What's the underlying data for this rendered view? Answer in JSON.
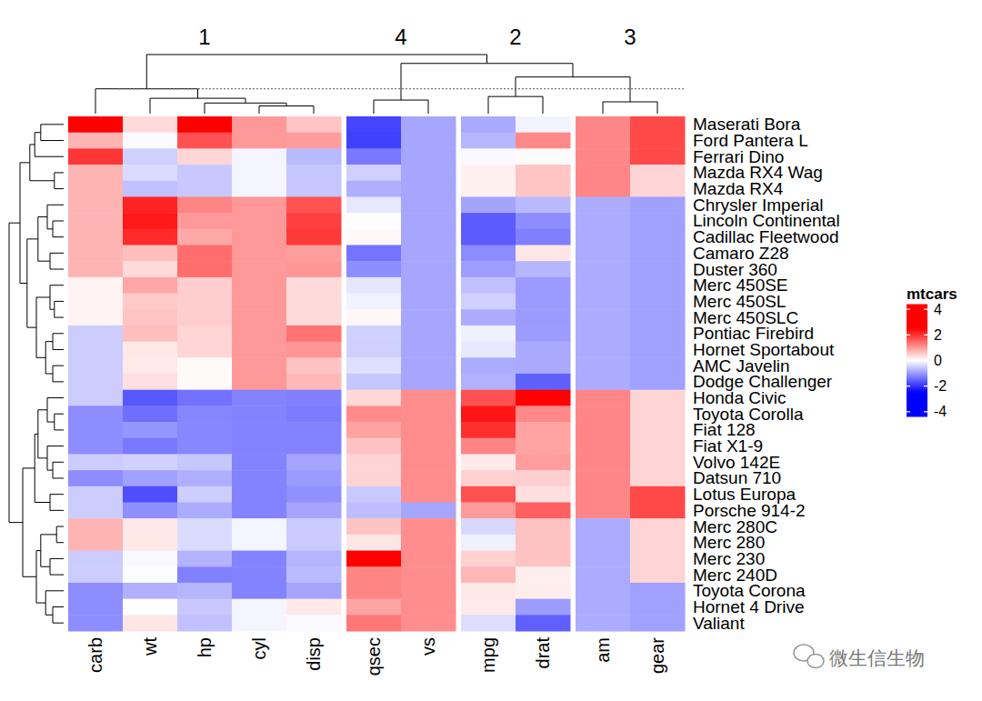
{
  "chart_data": {
    "type": "heatmap",
    "legend_title": "mtcars",
    "rows": [
      "Maserati Bora",
      "Ford Pantera L",
      "Ferrari Dino",
      "Mazda RX4 Wag",
      "Mazda RX4",
      "Chrysler Imperial",
      "Lincoln Continental",
      "Cadillac Fleetwood",
      "Camaro Z28",
      "Duster 360",
      "Merc 450SE",
      "Merc 450SL",
      "Merc 450SLC",
      "Pontiac Firebird",
      "Hornet Sportabout",
      "AMC Javelin",
      "Dodge Challenger",
      "Honda Civic",
      "Toyota Corolla",
      "Fiat 128",
      "Fiat X1-9",
      "Volvo 142E",
      "Datsun 710",
      "Lotus Europa",
      "Porsche 914-2",
      "Merc 280C",
      "Merc 280",
      "Merc 230",
      "Merc 240D",
      "Toyota Corona",
      "Hornet 4 Drive",
      "Valiant"
    ],
    "columns": [
      "carb",
      "wt",
      "hp",
      "cyl",
      "disp",
      "qsec",
      "vs",
      "mpg",
      "drat",
      "am",
      "gear"
    ],
    "column_groups": [
      {
        "label": "1",
        "columns": [
          0,
          1,
          2,
          3,
          4
        ]
      },
      {
        "label": "4",
        "columns": [
          5,
          6
        ]
      },
      {
        "label": "2",
        "columns": [
          7,
          8
        ]
      },
      {
        "label": "3",
        "columns": [
          9,
          10
        ]
      }
    ],
    "cells": [
      [
        3.21,
        0.36,
        2.75,
        1.01,
        0.57,
        -1.82,
        -0.87,
        -0.84,
        -0.11,
        1.19,
        1.78
      ],
      [
        0.74,
        -0.05,
        1.71,
        1.01,
        0.97,
        -1.87,
        -0.87,
        -0.71,
        1.17,
        1.19,
        1.78
      ],
      [
        1.97,
        -0.46,
        0.41,
        -0.1,
        -0.69,
        -1.31,
        -0.87,
        -0.06,
        0.04,
        1.19,
        1.78
      ],
      [
        0.74,
        -0.35,
        -0.54,
        -0.1,
        -0.57,
        -0.46,
        -0.87,
        0.15,
        0.57,
        1.19,
        0.42
      ],
      [
        0.74,
        -0.61,
        -0.54,
        -0.1,
        -0.57,
        -0.78,
        -0.87,
        0.15,
        0.57,
        1.19,
        0.42
      ],
      [
        0.74,
        2.17,
        1.21,
        1.01,
        1.7,
        -0.24,
        -0.87,
        -0.89,
        -0.69,
        -0.81,
        -0.93
      ],
      [
        0.74,
        2.26,
        1.0,
        1.01,
        1.87,
        -0.02,
        -0.87,
        -1.61,
        -1.12,
        -0.81,
        -0.93
      ],
      [
        0.74,
        2.08,
        0.85,
        1.01,
        1.95,
        0.07,
        -0.87,
        -1.61,
        -1.25,
        -0.81,
        -0.93
      ],
      [
        0.74,
        0.64,
        1.43,
        1.01,
        0.96,
        -1.36,
        -0.87,
        -1.13,
        0.25,
        -0.81,
        -0.93
      ],
      [
        0.74,
        0.36,
        1.43,
        1.01,
        1.04,
        -1.12,
        -0.87,
        -0.96,
        -0.72,
        -0.81,
        -0.93
      ],
      [
        0.12,
        0.87,
        0.49,
        1.01,
        0.36,
        -0.25,
        -0.87,
        -0.61,
        -0.98,
        -0.81,
        -0.93
      ],
      [
        0.12,
        0.52,
        0.49,
        1.01,
        0.36,
        -0.14,
        -0.87,
        -0.46,
        -0.98,
        -0.81,
        -0.93
      ],
      [
        0.12,
        0.58,
        0.49,
        1.01,
        0.36,
        0.08,
        -0.87,
        -0.81,
        -0.98,
        -0.81,
        -0.93
      ],
      [
        -0.5,
        0.64,
        0.41,
        1.01,
        1.37,
        -0.45,
        -0.87,
        -0.15,
        -0.97,
        -0.81,
        -0.93
      ],
      [
        -0.5,
        0.23,
        0.41,
        1.01,
        1.04,
        -0.46,
        -0.87,
        -0.23,
        -0.84,
        -0.81,
        -0.93
      ],
      [
        -0.5,
        0.22,
        0.05,
        1.01,
        0.59,
        -0.31,
        -0.87,
        -0.81,
        -0.84,
        -0.81,
        -0.93
      ],
      [
        -0.5,
        0.31,
        0.05,
        1.01,
        0.7,
        -0.55,
        -0.87,
        -0.76,
        -1.56,
        -0.81,
        -0.93
      ],
      [
        -0.5,
        -1.64,
        -1.38,
        -1.22,
        -1.25,
        0.38,
        1.12,
        1.71,
        2.49,
        1.19,
        0.42
      ],
      [
        -1.12,
        -1.41,
        -1.19,
        -1.22,
        -1.29,
        1.15,
        1.12,
        2.29,
        1.17,
        1.19,
        0.42
      ],
      [
        -1.12,
        -1.04,
        -1.18,
        -1.22,
        -1.23,
        0.91,
        1.12,
        2.04,
        0.9,
        1.19,
        0.42
      ],
      [
        -1.12,
        -1.31,
        -1.18,
        -1.22,
        -1.22,
        0.59,
        1.12,
        1.2,
        0.9,
        1.19,
        0.42
      ],
      [
        -0.5,
        -0.45,
        -0.55,
        -1.22,
        -0.89,
        0.42,
        1.12,
        0.22,
        0.96,
        1.19,
        0.42
      ],
      [
        -1.12,
        -0.92,
        -0.78,
        -1.22,
        -0.99,
        0.43,
        1.12,
        0.45,
        0.47,
        1.19,
        0.42
      ],
      [
        -0.5,
        -1.74,
        -0.49,
        -1.22,
        -1.09,
        -0.53,
        1.12,
        1.71,
        0.32,
        1.19,
        1.78
      ],
      [
        -0.5,
        -1.1,
        -0.81,
        -1.22,
        -0.89,
        -0.64,
        -0.87,
        0.98,
        1.56,
        1.19,
        1.78
      ],
      [
        0.74,
        0.23,
        -0.35,
        -0.1,
        -0.51,
        0.59,
        1.12,
        -0.38,
        0.6,
        -0.81,
        0.42
      ],
      [
        0.74,
        0.23,
        -0.35,
        -0.1,
        -0.51,
        0.25,
        1.12,
        -0.15,
        0.6,
        -0.81,
        0.42
      ],
      [
        -0.5,
        -0.07,
        -0.75,
        -1.22,
        -0.73,
        2.83,
        1.12,
        0.45,
        0.6,
        -0.81,
        0.42
      ],
      [
        -0.5,
        -0.03,
        -1.24,
        -1.22,
        -0.68,
        1.2,
        1.12,
        0.72,
        0.17,
        -0.81,
        0.42
      ],
      [
        -1.12,
        -0.77,
        -0.72,
        -1.22,
        -0.89,
        1.21,
        1.12,
        0.23,
        0.19,
        -0.81,
        -0.93
      ],
      [
        -1.12,
        0.0,
        -0.54,
        -0.1,
        0.22,
        0.89,
        1.12,
        0.22,
        -0.97,
        -0.81,
        -0.93
      ],
      [
        -1.12,
        0.25,
        -0.61,
        -0.1,
        -0.05,
        1.33,
        1.12,
        -0.33,
        -1.56,
        -0.81,
        -0.93
      ]
    ],
    "color_range": [
      -4.4,
      4.4
    ],
    "color_ticks": [
      -4,
      -2,
      0,
      2,
      4
    ],
    "color_stops": [
      {
        "value": -2.5,
        "color": "#0000ff"
      },
      {
        "value": 0,
        "color": "#ffffff"
      },
      {
        "value": 2.5,
        "color": "#ff0000"
      }
    ],
    "row_dendrogram": {
      "height": 1,
      "children": [
        {
          "height": 0.8,
          "children": [
            {
              "height": 0.62,
              "children": [
                {
                  "height": 0.53,
                  "children": [
                    {
                      "height": 0.42,
                      "children": [
                        0,
                        1
                      ]
                    },
                    2
                  ]
                },
                {
                  "height": 0.17,
                  "children": [
                    3,
                    4
                  ]
                }
              ]
            },
            {
              "height": 0.67,
              "children": [
                {
                  "height": 0.47,
                  "children": [
                    {
                      "height": 0.3,
                      "children": [
                        5,
                        {
                          "height": 0.2,
                          "children": [
                            6,
                            7
                          ]
                        }
                      ]
                    },
                    {
                      "height": 0.25,
                      "children": [
                        8,
                        9
                      ]
                    }
                  ]
                },
                {
                  "height": 0.5,
                  "children": [
                    {
                      "height": 0.25,
                      "children": [
                        10,
                        {
                          "height": 0.17,
                          "children": [
                            11,
                            12
                          ]
                        }
                      ]
                    },
                    {
                      "height": 0.33,
                      "children": [
                        {
                          "height": 0.2,
                          "children": [
                            13,
                            14
                          ]
                        },
                        {
                          "height": 0.2,
                          "children": [
                            15,
                            16
                          ]
                        }
                      ]
                    }
                  ]
                }
              ]
            }
          ]
        },
        {
          "height": 0.75,
          "children": [
            {
              "height": 0.53,
              "children": [
                {
                  "height": 0.47,
                  "children": [
                    {
                      "height": 0.3,
                      "children": [
                        17,
                        {
                          "height": 0.17,
                          "children": [
                            18,
                            19
                          ]
                        }
                      ]
                    },
                    {
                      "height": 0.3,
                      "children": [
                        20,
                        {
                          "height": 0.2,
                          "children": [
                            21,
                            22
                          ]
                        }
                      ]
                    }
                  ]
                },
                {
                  "height": 0.25,
                  "children": [
                    23,
                    24
                  ]
                }
              ]
            },
            {
              "height": 0.5,
              "children": [
                {
                  "height": 0.42,
                  "children": [
                    {
                      "height": 0.13,
                      "children": [
                        25,
                        26
                      ]
                    },
                    {
                      "height": 0.25,
                      "children": [
                        27,
                        28
                      ]
                    }
                  ]
                },
                {
                  "height": 0.33,
                  "children": [
                    29,
                    {
                      "height": 0.2,
                      "children": [
                        30,
                        31
                      ]
                    }
                  ]
                }
              ]
            }
          ]
        }
      ]
    },
    "column_dendrogram": {
      "height": 1,
      "children": [
        {
          "height": 0.42,
          "children": [
            0,
            {
              "height": 0.26,
              "children": [
                1,
                {
                  "height": 0.18,
                  "children": [
                    2,
                    {
                      "height": 0.13,
                      "children": [
                        3,
                        4
                      ]
                    }
                  ]
                }
              ]
            }
          ]
        },
        {
          "height": 0.85,
          "children": [
            {
              "height": 0.23,
              "children": [
                5,
                6
              ]
            },
            {
              "height": 0.62,
              "children": [
                {
                  "height": 0.29,
                  "children": [
                    7,
                    8
                  ]
                },
                {
                  "height": 0.2,
                  "children": [
                    9,
                    10
                  ]
                }
              ]
            }
          ]
        }
      ]
    },
    "column_cut_height": 0.42,
    "watermark": "微生信生物"
  }
}
